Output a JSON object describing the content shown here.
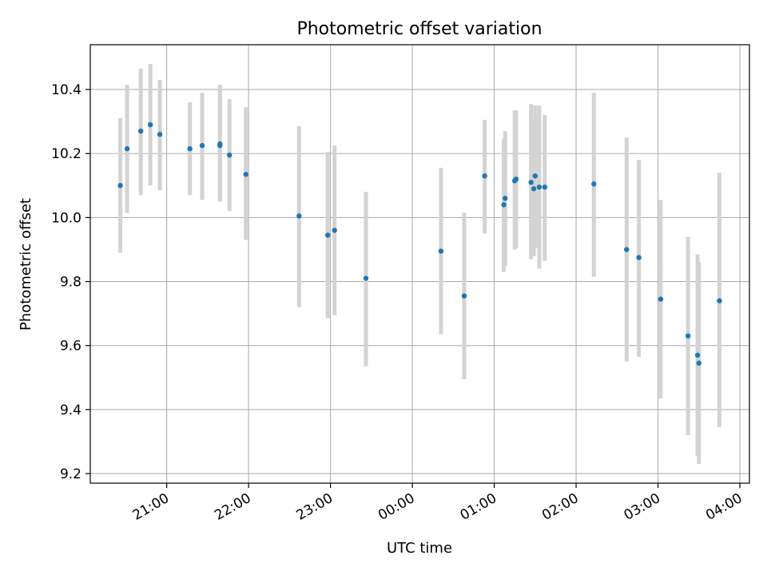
{
  "chart_data": {
    "type": "scatter",
    "title": "Photometric offset variation",
    "xlabel": "UTC time",
    "ylabel": "Photometric offset",
    "x_ticks": [
      "21:00",
      "22:00",
      "23:00",
      "00:00",
      "01:00",
      "02:00",
      "03:00",
      "04:00"
    ],
    "x_tick_times": [
      "2000-01-01T21:00",
      "2000-01-01T22:00",
      "2000-01-01T23:00",
      "2000-01-02T00:00",
      "2000-01-02T01:00",
      "2000-01-02T02:00",
      "2000-01-02T03:00",
      "2000-01-02T04:00"
    ],
    "y_ticks": [
      "9.2",
      "9.4",
      "9.6",
      "9.8",
      "10.0",
      "10.2",
      "10.4"
    ],
    "xlim": [
      "2000-01-01T20:04",
      "2000-01-02T04:07"
    ],
    "ylim": [
      9.17,
      10.54
    ],
    "grid": true,
    "colors": {
      "point": "#1f77b4",
      "errorbar": "#d3d3d3",
      "grid": "#b0b0b0",
      "axes": "#000000"
    },
    "points": [
      {
        "t": "2000-01-01T20:26",
        "y": 10.1,
        "err_low": 9.89,
        "err_high": 10.31
      },
      {
        "t": "2000-01-01T20:31",
        "y": 10.215,
        "err_low": 10.015,
        "err_high": 10.415
      },
      {
        "t": "2000-01-01T20:41",
        "y": 10.27,
        "err_low": 10.07,
        "err_high": 10.465
      },
      {
        "t": "2000-01-01T20:48",
        "y": 10.29,
        "err_low": 10.1,
        "err_high": 10.48
      },
      {
        "t": "2000-01-01T20:55",
        "y": 10.26,
        "err_low": 10.085,
        "err_high": 10.43
      },
      {
        "t": "2000-01-01T21:17",
        "y": 10.215,
        "err_low": 10.07,
        "err_high": 10.36
      },
      {
        "t": "2000-01-01T21:26",
        "y": 10.225,
        "err_low": 10.055,
        "err_high": 10.39
      },
      {
        "t": "2000-01-01T21:39",
        "y": 10.23,
        "err_low": 10.05,
        "err_high": 10.415
      },
      {
        "t": "2000-01-01T21:39",
        "y": 10.225,
        "err_low": 10.05,
        "err_high": 10.41
      },
      {
        "t": "2000-01-01T21:46",
        "y": 10.195,
        "err_low": 10.02,
        "err_high": 10.37
      },
      {
        "t": "2000-01-01T21:58",
        "y": 10.135,
        "err_low": 9.93,
        "err_high": 10.345
      },
      {
        "t": "2000-01-01T22:37",
        "y": 10.005,
        "err_low": 9.72,
        "err_high": 10.285
      },
      {
        "t": "2000-01-01T22:58",
        "y": 9.945,
        "err_low": 9.685,
        "err_high": 10.205
      },
      {
        "t": "2000-01-01T23:03",
        "y": 9.96,
        "err_low": 9.695,
        "err_high": 10.225
      },
      {
        "t": "2000-01-01T23:26",
        "y": 9.81,
        "err_low": 9.535,
        "err_high": 10.08
      },
      {
        "t": "2000-01-02T00:21",
        "y": 9.895,
        "err_low": 9.635,
        "err_high": 10.155
      },
      {
        "t": "2000-01-02T00:38",
        "y": 9.755,
        "err_low": 9.495,
        "err_high": 10.015
      },
      {
        "t": "2000-01-02T00:53",
        "y": 10.13,
        "err_low": 9.95,
        "err_high": 10.305
      },
      {
        "t": "2000-01-02T01:07",
        "y": 10.04,
        "err_low": 9.83,
        "err_high": 10.245
      },
      {
        "t": "2000-01-02T01:08",
        "y": 10.06,
        "err_low": 9.85,
        "err_high": 10.27
      },
      {
        "t": "2000-01-02T01:15",
        "y": 10.115,
        "err_low": 9.9,
        "err_high": 10.335
      },
      {
        "t": "2000-01-02T01:16",
        "y": 10.12,
        "err_low": 9.905,
        "err_high": 10.335
      },
      {
        "t": "2000-01-02T01:27",
        "y": 10.11,
        "err_low": 9.87,
        "err_high": 10.355
      },
      {
        "t": "2000-01-02T01:29",
        "y": 10.09,
        "err_low": 9.88,
        "err_high": 10.3
      },
      {
        "t": "2000-01-02T01:30",
        "y": 10.13,
        "err_low": 9.905,
        "err_high": 10.35
      },
      {
        "t": "2000-01-02T01:33",
        "y": 10.095,
        "err_low": 9.84,
        "err_high": 10.35
      },
      {
        "t": "2000-01-02T01:37",
        "y": 10.095,
        "err_low": 9.865,
        "err_high": 10.32
      },
      {
        "t": "2000-01-02T02:13",
        "y": 10.105,
        "err_low": 9.815,
        "err_high": 10.39
      },
      {
        "t": "2000-01-02T02:37",
        "y": 9.9,
        "err_low": 9.55,
        "err_high": 10.25
      },
      {
        "t": "2000-01-02T02:46",
        "y": 9.875,
        "err_low": 9.565,
        "err_high": 10.18
      },
      {
        "t": "2000-01-02T03:02",
        "y": 9.745,
        "err_low": 9.435,
        "err_high": 10.055
      },
      {
        "t": "2000-01-02T03:22",
        "y": 9.63,
        "err_low": 9.32,
        "err_high": 9.94
      },
      {
        "t": "2000-01-02T03:29",
        "y": 9.57,
        "err_low": 9.255,
        "err_high": 9.885
      },
      {
        "t": "2000-01-02T03:30",
        "y": 9.545,
        "err_low": 9.23,
        "err_high": 9.86
      },
      {
        "t": "2000-01-02T03:45",
        "y": 9.74,
        "err_low": 9.345,
        "err_high": 10.14
      }
    ]
  }
}
